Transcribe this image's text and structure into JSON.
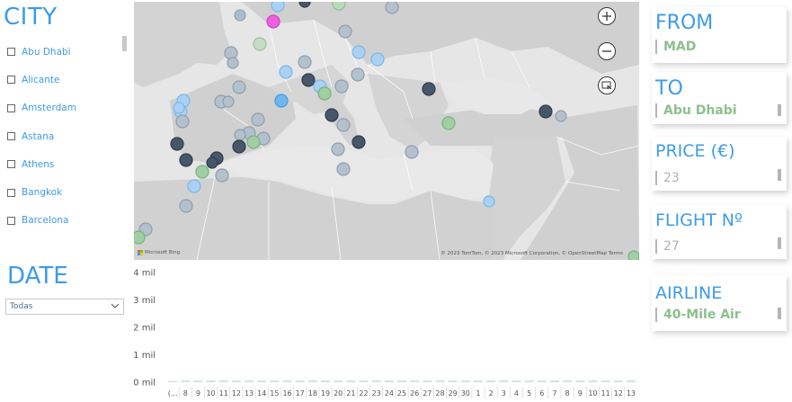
{
  "city_panel": {
    "title": "CITY",
    "items": [
      "Abu Dhabi",
      "Alicante",
      "Amsterdam",
      "Astana",
      "Athens",
      "Bangkok",
      "Barcelona"
    ]
  },
  "date_panel": {
    "title": "DATE",
    "selected": "Todas"
  },
  "map": {
    "attribution_left": "Microsoft Bing",
    "attribution_right": "© 2023 TomTom, © 2023 Microsoft Corporation, © OpenStreetMap  Terms"
  },
  "cards": {
    "from": {
      "label": "FROM",
      "value": "MAD"
    },
    "to": {
      "label": "TO",
      "value": "Abu Dhabi"
    },
    "price": {
      "label": "PRICE (€)",
      "value": "23"
    },
    "flight": {
      "label": "FLIGHT Nº",
      "value": "27"
    },
    "airline": {
      "label": "AIRLINE",
      "value": "40-Mile Air"
    }
  },
  "colors": {
    "accent": "#3d9be9",
    "value_green": "#8cc08e",
    "bar": "#cfe3d4"
  },
  "chart_data": {
    "type": "bar",
    "y_ticks": [
      "4 mil",
      "3 mil",
      "2 mil",
      "1 mil",
      "0 mil"
    ],
    "ylim": [
      0,
      4000
    ],
    "categories": [
      "(...",
      "8",
      "9",
      "10",
      "11",
      "12",
      "13",
      "14",
      "15",
      "16",
      "17",
      "18",
      "19",
      "20",
      "21",
      "22",
      "23",
      "24",
      "25",
      "26",
      "27",
      "28",
      "29",
      "30",
      "1",
      "2",
      "3",
      "4",
      "5",
      "6",
      "7",
      "8",
      "9",
      "10",
      "11",
      "12",
      "13"
    ],
    "values": [
      40,
      60,
      60,
      60,
      60,
      60,
      60,
      60,
      60,
      60,
      60,
      60,
      60,
      60,
      60,
      60,
      60,
      60,
      60,
      60,
      60,
      60,
      60,
      60,
      60,
      60,
      60,
      60,
      60,
      60,
      60,
      60,
      60,
      60,
      60,
      60,
      60
    ]
  }
}
